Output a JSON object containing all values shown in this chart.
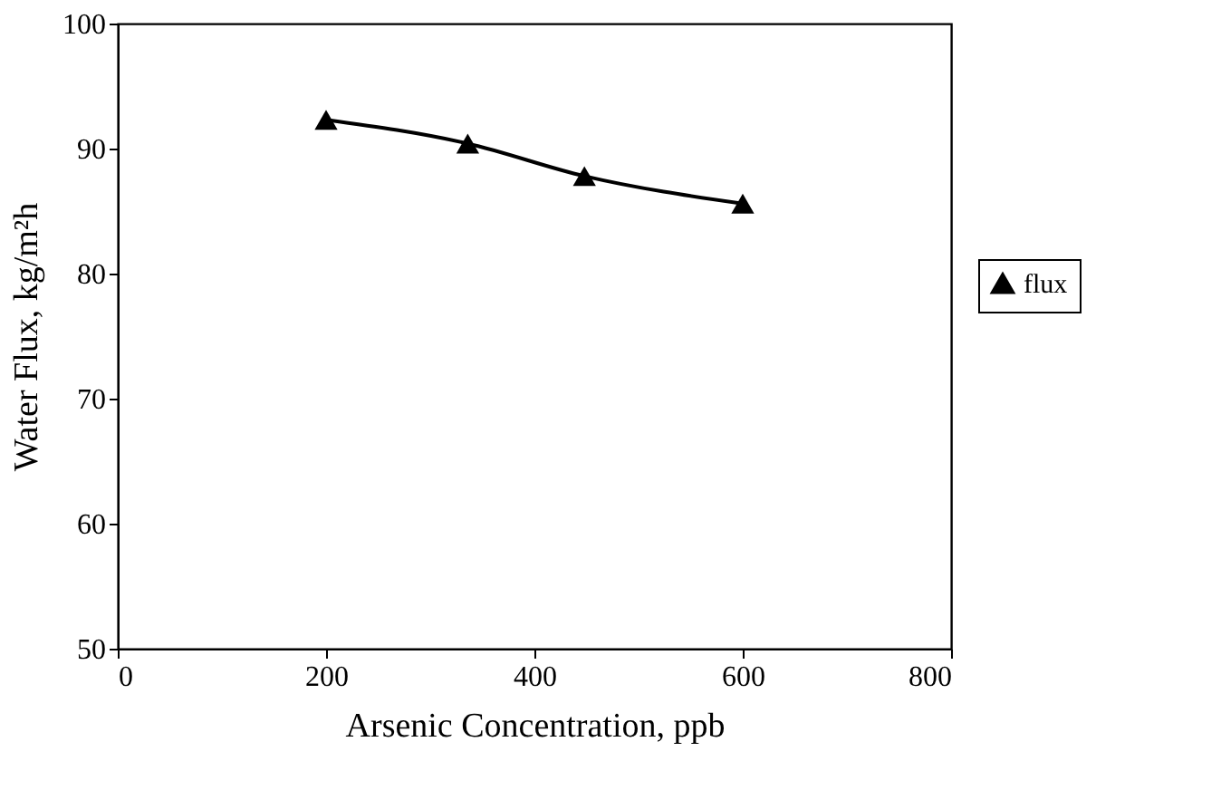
{
  "chart_data": {
    "type": "line",
    "xlabel": "Arsenic Concentration, ppb",
    "ylabel": "Water Flux, kg/m²h",
    "x": [
      200,
      336,
      448,
      600
    ],
    "series": [
      {
        "name": "flux",
        "color": "#000000",
        "values": [
          92.3,
          90.4,
          87.8,
          85.6
        ]
      }
    ],
    "xlim": [
      0,
      800
    ],
    "xticks": [
      0,
      200,
      400,
      600,
      800
    ],
    "ylim": [
      50,
      100
    ],
    "yticks": [
      50,
      60,
      70,
      80,
      90,
      100
    ],
    "grid": false,
    "legend": "right",
    "marker": "triangle",
    "line_style": "solid"
  }
}
